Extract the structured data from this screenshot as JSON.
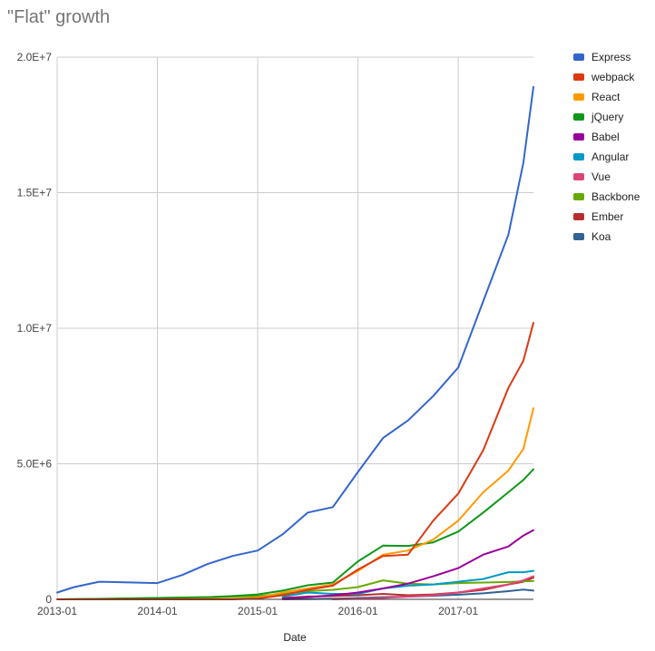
{
  "chart_data": {
    "type": "line",
    "title": "\"Flat\" growth",
    "xlabel": "Date",
    "ylabel": "",
    "xlim": [
      2013.0,
      2017.75
    ],
    "ylim": [
      0,
      20000000
    ],
    "grid": true,
    "legend_position": "right",
    "x_ticks": [
      {
        "value": 2013.0,
        "label": "2013-01"
      },
      {
        "value": 2014.0,
        "label": "2014-01"
      },
      {
        "value": 2015.0,
        "label": "2015-01"
      },
      {
        "value": 2016.0,
        "label": "2016-01"
      },
      {
        "value": 2017.0,
        "label": "2017-01"
      }
    ],
    "y_ticks": [
      {
        "value": 0,
        "label": "0"
      },
      {
        "value": 5000000,
        "label": "5.0E+6"
      },
      {
        "value": 10000000,
        "label": "1.0E+7"
      },
      {
        "value": 15000000,
        "label": "1.5E+7"
      },
      {
        "value": 20000000,
        "label": "2.0E+7"
      }
    ],
    "series": [
      {
        "name": "Express",
        "color": "#3366cc",
        "x": [
          2013.0,
          2013.17,
          2013.42,
          2014.0,
          2014.25,
          2014.5,
          2014.75,
          2015.0,
          2015.25,
          2015.5,
          2015.75,
          2016.0,
          2016.25,
          2016.5,
          2016.75,
          2017.0,
          2017.25,
          2017.5,
          2017.65,
          2017.75
        ],
        "y": [
          250000,
          450000,
          650000,
          600000,
          900000,
          1300000,
          1600000,
          1800000,
          2400000,
          3200000,
          3400000,
          4700000,
          5950000,
          6600000,
          7500000,
          8550000,
          11000000,
          13450000,
          16100000,
          18900000
        ]
      },
      {
        "name": "webpack",
        "color": "#dc3912",
        "x": [
          2013.0,
          2014.0,
          2014.75,
          2015.0,
          2015.25,
          2015.5,
          2015.75,
          2016.0,
          2016.25,
          2016.5,
          2016.75,
          2017.0,
          2017.25,
          2017.5,
          2017.65,
          2017.75
        ],
        "y": [
          0,
          0,
          0,
          30000,
          150000,
          350000,
          500000,
          1100000,
          1600000,
          1650000,
          2900000,
          3900000,
          5500000,
          7800000,
          8800000,
          10200000
        ]
      },
      {
        "name": "React",
        "color": "#ff9900",
        "x": [
          2013.0,
          2014.0,
          2014.75,
          2015.0,
          2015.25,
          2015.5,
          2015.75,
          2016.0,
          2016.25,
          2016.5,
          2016.75,
          2017.0,
          2017.25,
          2017.5,
          2017.65,
          2017.75
        ],
        "y": [
          0,
          0,
          20000,
          60000,
          250000,
          400000,
          550000,
          1050000,
          1650000,
          1800000,
          2200000,
          2900000,
          3950000,
          4750000,
          5550000,
          7050000
        ]
      },
      {
        "name": "jQuery",
        "color": "#109618",
        "x": [
          2013.0,
          2013.5,
          2014.0,
          2014.5,
          2014.75,
          2015.0,
          2015.25,
          2015.5,
          2015.75,
          2016.0,
          2016.25,
          2016.5,
          2016.75,
          2017.0,
          2017.25,
          2017.5,
          2017.65,
          2017.75
        ],
        "y": [
          0,
          20000,
          50000,
          80000,
          120000,
          180000,
          320000,
          520000,
          620000,
          1400000,
          1980000,
          1970000,
          2100000,
          2500000,
          3200000,
          3950000,
          4400000,
          4800000
        ]
      },
      {
        "name": "Babel",
        "color": "#990099",
        "x": [
          2015.25,
          2015.5,
          2015.75,
          2016.0,
          2016.25,
          2016.5,
          2016.75,
          2017.0,
          2017.25,
          2017.5,
          2017.65,
          2017.75
        ],
        "y": [
          30000,
          80000,
          150000,
          250000,
          400000,
          580000,
          850000,
          1150000,
          1650000,
          1950000,
          2350000,
          2550000
        ]
      },
      {
        "name": "Angular",
        "color": "#0099c6",
        "x": [
          2015.25,
          2015.5,
          2015.75,
          2016.0,
          2016.25,
          2016.5,
          2016.75,
          2017.0,
          2017.25,
          2017.5,
          2017.65,
          2017.75
        ],
        "y": [
          100000,
          250000,
          200000,
          200000,
          400000,
          500000,
          550000,
          650000,
          750000,
          1000000,
          1000000,
          1050000
        ]
      },
      {
        "name": "Vue",
        "color": "#dd4477",
        "x": [
          2015.75,
          2016.0,
          2016.25,
          2016.5,
          2016.75,
          2017.0,
          2017.25,
          2017.5,
          2017.65,
          2017.75
        ],
        "y": [
          0,
          20000,
          50000,
          100000,
          150000,
          250000,
          400000,
          550000,
          700000,
          850000
        ]
      },
      {
        "name": "Backbone",
        "color": "#66aa00",
        "x": [
          2013.0,
          2013.5,
          2014.0,
          2014.5,
          2014.75,
          2015.0,
          2015.25,
          2015.5,
          2015.75,
          2016.0,
          2016.25,
          2016.5,
          2016.75,
          2017.0,
          2017.25,
          2017.5,
          2017.65,
          2017.75
        ],
        "y": [
          0,
          20000,
          50000,
          80000,
          100000,
          120000,
          200000,
          300000,
          350000,
          450000,
          700000,
          580000,
          550000,
          600000,
          620000,
          640000,
          660000,
          680000
        ]
      },
      {
        "name": "Ember",
        "color": "#b82e2e",
        "x": [
          2015.25,
          2015.5,
          2015.75,
          2016.0,
          2016.25,
          2016.5,
          2016.75,
          2017.0,
          2017.25,
          2017.5,
          2017.65,
          2017.75
        ],
        "y": [
          50000,
          100000,
          120000,
          150000,
          200000,
          150000,
          180000,
          250000,
          350000,
          550000,
          650000,
          800000
        ]
      },
      {
        "name": "Koa",
        "color": "#316395",
        "x": [
          2015.25,
          2015.5,
          2015.75,
          2016.0,
          2016.25,
          2016.5,
          2016.75,
          2017.0,
          2017.25,
          2017.5,
          2017.65,
          2017.75
        ],
        "y": [
          0,
          10000,
          20000,
          50000,
          80000,
          100000,
          130000,
          170000,
          220000,
          300000,
          360000,
          320000
        ]
      }
    ]
  }
}
